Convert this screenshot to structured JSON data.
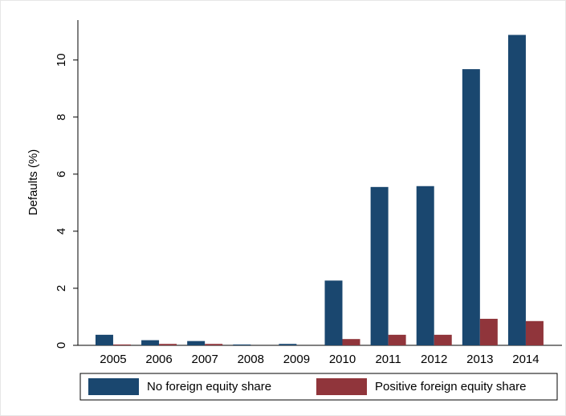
{
  "chart_data": {
    "type": "bar",
    "y_label": "Defaults (%)",
    "categories": [
      "2005",
      "2006",
      "2007",
      "2008",
      "2009",
      "2010",
      "2011",
      "2012",
      "2013",
      "2014"
    ],
    "series": [
      {
        "name": "No foreign equity share",
        "color": "#1a476f",
        "values": [
          0.37,
          0.18,
          0.15,
          0.03,
          0.05,
          2.27,
          5.55,
          5.58,
          9.68,
          10.88
        ]
      },
      {
        "name": "Positive foreign equity share",
        "color": "#90353b",
        "values": [
          0.03,
          0.05,
          0.05,
          0.0,
          0.0,
          0.22,
          0.37,
          0.37,
          0.93,
          0.85
        ]
      }
    ],
    "ylim": [
      0,
      11.4
    ],
    "yticks": [
      0,
      2,
      4,
      6,
      8,
      10
    ],
    "grid": false,
    "legend": "bottom"
  }
}
